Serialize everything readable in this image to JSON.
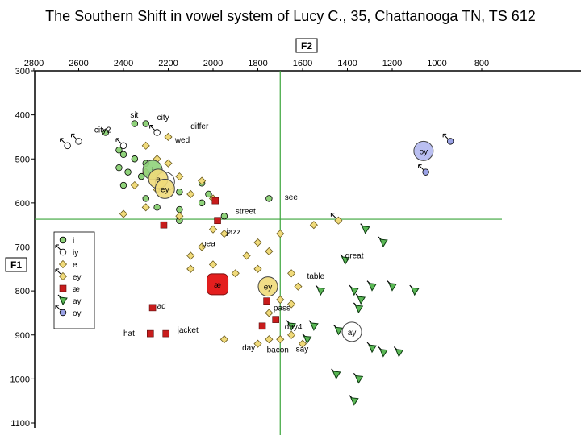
{
  "title": "The Southern Shift in vowel system of Lucy C., 35, Chattanooga TN, TS 612",
  "chart_data": {
    "type": "scatter",
    "title": "The Southern Shift in vowel system of Lucy C., 35, Chattanooga TN, TS 612",
    "xlabel": "F2",
    "ylabel": "F1",
    "xlim": [
      2800,
      800
    ],
    "ylim": [
      300,
      1100
    ],
    "x_reversed": true,
    "y_reversed": true,
    "x_ticks": [
      2800,
      2600,
      2400,
      2200,
      2000,
      1800,
      1600,
      1400,
      1200,
      1000,
      800
    ],
    "y_ticks": [
      300,
      400,
      500,
      600,
      700,
      800,
      900,
      1000,
      1100
    ],
    "crosshair": {
      "f2": 1700,
      "f1": 637
    },
    "legend_position": "lower-left",
    "series": [
      {
        "name": "i",
        "marker": "circle",
        "color": "#8fd27a",
        "points": [
          [
            2350,
            420
          ],
          [
            2300,
            420
          ],
          [
            2480,
            440
          ],
          [
            2420,
            480
          ],
          [
            2400,
            490
          ],
          [
            2350,
            500
          ],
          [
            2300,
            510
          ],
          [
            2420,
            520
          ],
          [
            2380,
            530
          ],
          [
            2320,
            540
          ],
          [
            2250,
            530
          ],
          [
            2200,
            560
          ],
          [
            2150,
            575
          ],
          [
            2050,
            555
          ],
          [
            2020,
            580
          ],
          [
            2400,
            560
          ],
          [
            2300,
            590
          ],
          [
            2250,
            610
          ],
          [
            2150,
            615
          ],
          [
            2050,
            600
          ],
          [
            1950,
            630
          ],
          [
            2150,
            640
          ],
          [
            1750,
            590
          ]
        ]
      },
      {
        "name": "iy",
        "marker": "circle-tail",
        "color": "#ffffff",
        "points": [
          [
            2650,
            470
          ],
          [
            2600,
            460
          ],
          [
            2400,
            470
          ],
          [
            2250,
            440
          ]
        ]
      },
      {
        "name": "e",
        "marker": "diamond",
        "color": "#f0da7a",
        "points": [
          [
            2200,
            450
          ],
          [
            2300,
            470
          ],
          [
            2250,
            500
          ],
          [
            2200,
            510
          ],
          [
            2300,
            530
          ],
          [
            2150,
            540
          ],
          [
            2050,
            550
          ],
          [
            2350,
            560
          ],
          [
            2250,
            570
          ],
          [
            2100,
            580
          ],
          [
            2000,
            590
          ],
          [
            2300,
            610
          ],
          [
            2150,
            630
          ],
          [
            2400,
            625
          ],
          [
            2000,
            660
          ],
          [
            1950,
            670
          ],
          [
            2050,
            700
          ],
          [
            2100,
            720
          ],
          [
            1800,
            690
          ],
          [
            1700,
            670
          ],
          [
            1750,
            710
          ],
          [
            1850,
            720
          ],
          [
            2100,
            750
          ],
          [
            2000,
            740
          ],
          [
            1900,
            760
          ],
          [
            1800,
            750
          ],
          [
            1550,
            650
          ],
          [
            1650,
            760
          ],
          [
            1620,
            790
          ],
          [
            1750,
            850
          ],
          [
            1700,
            820
          ],
          [
            1650,
            830
          ],
          [
            1700,
            910
          ],
          [
            1650,
            900
          ],
          [
            1600,
            920
          ],
          [
            1800,
            920
          ],
          [
            1750,
            910
          ],
          [
            1950,
            910
          ]
        ]
      },
      {
        "name": "ey",
        "marker": "diamond-tail",
        "color": "#f0da7a",
        "points": [
          [
            1440,
            640
          ]
        ]
      },
      {
        "name": "æ",
        "marker": "square",
        "color": "#c81c1c",
        "points": [
          [
            2220,
            650
          ],
          [
            1980,
            640
          ],
          [
            1990,
            595
          ],
          [
            2270,
            838
          ],
          [
            2280,
            897
          ],
          [
            2210,
            897
          ],
          [
            1760,
            823
          ],
          [
            1780,
            880
          ],
          [
            1720,
            865
          ]
        ]
      },
      {
        "name": "ay",
        "marker": "triangle",
        "color": "#5ab855",
        "points": [
          [
            1320,
            660
          ],
          [
            1240,
            690
          ],
          [
            1410,
            730
          ],
          [
            1520,
            800
          ],
          [
            1370,
            800
          ],
          [
            1340,
            820
          ],
          [
            1290,
            790
          ],
          [
            1200,
            790
          ],
          [
            1100,
            800
          ],
          [
            1350,
            840
          ],
          [
            1550,
            880
          ],
          [
            1440,
            890
          ],
          [
            1290,
            930
          ],
          [
            1240,
            940
          ],
          [
            1170,
            940
          ],
          [
            1450,
            990
          ],
          [
            1350,
            1000
          ],
          [
            1370,
            1050
          ],
          [
            1580,
            910
          ],
          [
            1650,
            880
          ]
        ]
      },
      {
        "name": "oy",
        "marker": "circle-tail",
        "color": "#9aa2e6",
        "points": [
          [
            940,
            460
          ],
          [
            1050,
            530
          ]
        ]
      }
    ],
    "means": [
      {
        "label": "i",
        "f2": 2270,
        "f1": 525,
        "color": "#8fd27a"
      },
      {
        "label": "iy",
        "f2": 2215,
        "f1": 552,
        "color": "#ffffff"
      },
      {
        "label": "e",
        "f2": 2245,
        "f1": 545,
        "color": "#f0da7a"
      },
      {
        "label": "ey",
        "f2": 2215,
        "f1": 568,
        "color": "#f0da7a"
      },
      {
        "label": "æ",
        "f2": 1980,
        "f1": 785,
        "color": "#e41e1e"
      },
      {
        "label": "ey",
        "f2": 1755,
        "f1": 790,
        "color": "#f0da7a"
      },
      {
        "label": "ay",
        "f2": 1380,
        "f1": 893,
        "color": "#ffffff"
      },
      {
        "label": "oy",
        "f2": 1060,
        "f1": 482,
        "color": "#b3b8f0"
      }
    ],
    "annotations": [
      {
        "text": "city2",
        "f2": 2530,
        "f1": 440
      },
      {
        "text": "sit",
        "f2": 2370,
        "f1": 406
      },
      {
        "text": "city",
        "f2": 2250,
        "f1": 412
      },
      {
        "text": "differ",
        "f2": 2100,
        "f1": 432
      },
      {
        "text": "wed",
        "f2": 2170,
        "f1": 463
      },
      {
        "text": "see",
        "f2": 1680,
        "f1": 593
      },
      {
        "text": "street",
        "f2": 1900,
        "f1": 625
      },
      {
        "text": "jazz",
        "f2": 1940,
        "f1": 672
      },
      {
        "text": "pea",
        "f2": 2050,
        "f1": 698
      },
      {
        "text": "great",
        "f2": 1410,
        "f1": 726
      },
      {
        "text": "table",
        "f2": 1580,
        "f1": 772
      },
      {
        "text": "ad",
        "f2": 2250,
        "f1": 840
      },
      {
        "text": "pass",
        "f2": 1730,
        "f1": 845
      },
      {
        "text": "hat",
        "f2": 2400,
        "f1": 902
      },
      {
        "text": "jacket",
        "f2": 2160,
        "f1": 895
      },
      {
        "text": "day4",
        "f2": 1680,
        "f1": 888
      },
      {
        "text": "day",
        "f2": 1870,
        "f1": 935
      },
      {
        "text": "bacon",
        "f2": 1760,
        "f1": 940
      },
      {
        "text": "say",
        "f2": 1630,
        "f1": 938
      }
    ],
    "legend": [
      "i",
      "iy",
      "e",
      "ey",
      "æ",
      "ay",
      "oy"
    ]
  }
}
